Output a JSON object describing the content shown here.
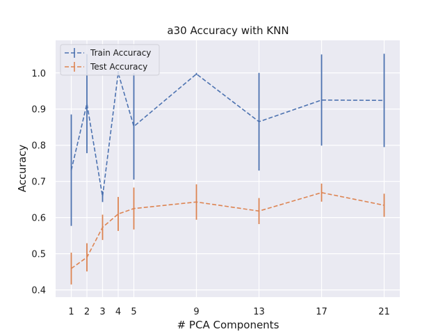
{
  "chart_data": {
    "type": "line",
    "title": "a30 Accuracy with KNN",
    "xlabel": "# PCA Components",
    "ylabel": "Accuracy",
    "x": [
      1,
      2,
      3,
      4,
      5,
      9,
      13,
      17,
      21
    ],
    "x_tick_labels": [
      "1",
      "2",
      "3",
      "4",
      "5",
      "9",
      "13",
      "17",
      "21"
    ],
    "y_ticks": [
      0.4,
      0.5,
      0.6,
      0.7,
      0.8,
      0.9,
      1.0
    ],
    "y_tick_labels": [
      "0.4",
      "0.5",
      "0.6",
      "0.7",
      "0.8",
      "0.9",
      "1.0"
    ],
    "xlim": [
      0,
      22
    ],
    "ylim": [
      0.38,
      1.09
    ],
    "grid": true,
    "legend_position": "top-left",
    "series": [
      {
        "name": "Train Accuracy",
        "color": "#4c72b0",
        "line_style": "dashed",
        "values": [
          0.731,
          0.915,
          0.658,
          1.0,
          0.852,
          0.997,
          0.865,
          0.925,
          0.924
        ],
        "errors": [
          0.154,
          0.137,
          0.015,
          0.005,
          0.147,
          0.003,
          0.135,
          0.126,
          0.129
        ]
      },
      {
        "name": "Test Accuracy",
        "color": "#dd8452",
        "line_style": "dashed",
        "values": [
          0.459,
          0.49,
          0.573,
          0.61,
          0.625,
          0.643,
          0.618,
          0.669,
          0.634
        ],
        "errors": [
          0.044,
          0.039,
          0.035,
          0.047,
          0.058,
          0.049,
          0.036,
          0.025,
          0.032
        ]
      }
    ]
  }
}
